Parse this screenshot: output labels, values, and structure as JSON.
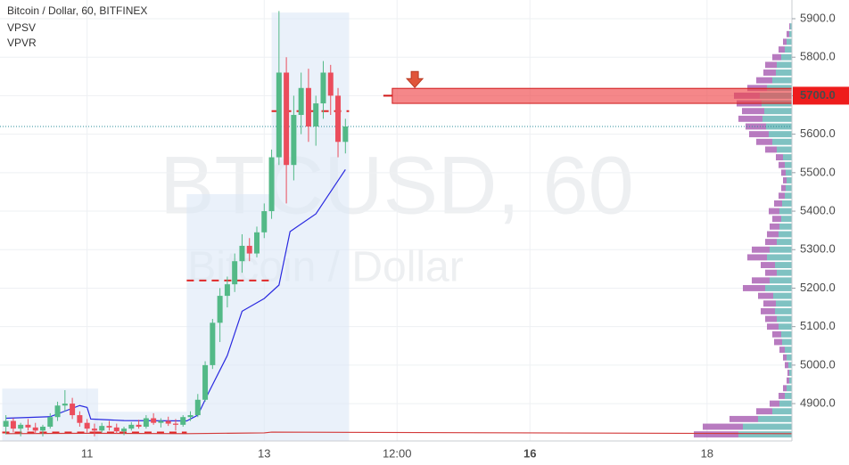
{
  "chart_data": {
    "type": "candlestick",
    "title": "Bitcoin / Dollar, 60, BITFINEX",
    "indicators": [
      "VPSV",
      "VPVR"
    ],
    "watermark": "BTCUSD, 60",
    "watermark_subtitle": "Bitcoin / Dollar",
    "xlim": [
      -23.6,
      191
    ],
    "ylim": [
      4803,
      5948.6
    ],
    "xticks": [
      {
        "value": 0,
        "label": "11"
      },
      {
        "value": 48,
        "label": "13"
      },
      {
        "value": 84,
        "label": "12:00"
      },
      {
        "value": 120,
        "label": "16"
      },
      {
        "value": 168,
        "label": "18"
      }
    ],
    "yticks": [
      {
        "value": 4900,
        "label": "4900.0"
      },
      {
        "value": 5000,
        "label": "5000.0"
      },
      {
        "value": 5100,
        "label": "5100.0"
      },
      {
        "value": 5200,
        "label": "5200.0"
      },
      {
        "value": 5300,
        "label": "5300.0"
      },
      {
        "value": 5400,
        "label": "5400.0"
      },
      {
        "value": 5500,
        "label": "5500.0"
      },
      {
        "value": 5600,
        "label": "5600.0"
      },
      {
        "value": 5700,
        "label": "5700.0"
      },
      {
        "value": 5800,
        "label": "5800.0"
      },
      {
        "value": 5900,
        "label": "5900.0"
      }
    ],
    "grid": true,
    "up_color": "#53b987",
    "down_color": "#eb4d5c",
    "candles": {
      "x": [
        -22,
        -20,
        -18,
        -16,
        -14,
        -12,
        -10,
        -8,
        -6,
        -4,
        -2,
        0,
        2,
        4,
        6,
        8,
        10,
        12,
        14,
        16,
        18,
        20,
        22,
        24,
        26,
        28,
        30,
        32,
        34,
        36,
        38,
        40,
        42,
        44,
        46,
        48,
        50,
        52,
        54,
        56,
        58,
        60,
        62,
        64,
        66,
        68,
        70
      ],
      "open": [
        4840,
        4855,
        4835,
        4845,
        4838,
        4830,
        4840,
        4865,
        4895,
        4900,
        4870,
        4850,
        4835,
        4830,
        4842,
        4838,
        4828,
        4835,
        4845,
        4840,
        4862,
        4850,
        4855,
        4848,
        4845,
        4865,
        4870,
        4910,
        5000,
        5110,
        5180,
        5210,
        5270,
        5310,
        5290,
        5345,
        5400,
        5540,
        5760,
        5520,
        5650,
        5720,
        5620,
        5680,
        5760,
        5700,
        5580
      ],
      "high": [
        4870,
        4862,
        4850,
        4860,
        4850,
        4845,
        4875,
        4905,
        4935,
        4915,
        4880,
        4860,
        4848,
        4850,
        4855,
        4848,
        4840,
        4852,
        4858,
        4870,
        4875,
        4862,
        4866,
        4860,
        4870,
        4880,
        4925,
        5010,
        5120,
        5200,
        5230,
        5290,
        5340,
        5330,
        5360,
        5420,
        5560,
        5920,
        5800,
        5700,
        5760,
        5770,
        5700,
        5790,
        5780,
        5720,
        5640
      ],
      "low": [
        4820,
        4825,
        4815,
        4830,
        4822,
        4815,
        4835,
        4855,
        4880,
        4860,
        4840,
        4825,
        4815,
        4825,
        4830,
        4822,
        4818,
        4830,
        4835,
        4835,
        4845,
        4838,
        4842,
        4830,
        4840,
        4855,
        4865,
        4905,
        4990,
        5060,
        5150,
        5190,
        5240,
        5270,
        5280,
        5330,
        5380,
        5520,
        5420,
        5480,
        5600,
        5580,
        5570,
        5640,
        5650,
        5540,
        5550
      ],
      "close": [
        4855,
        4835,
        4845,
        4838,
        4830,
        4840,
        4865,
        4895,
        4900,
        4870,
        4850,
        4835,
        4830,
        4842,
        4838,
        4828,
        4835,
        4845,
        4840,
        4862,
        4850,
        4855,
        4848,
        4845,
        4865,
        4870,
        4910,
        5000,
        5110,
        5180,
        5210,
        5270,
        5310,
        5290,
        5345,
        5400,
        5540,
        5760,
        5520,
        5650,
        5720,
        5620,
        5680,
        5760,
        5700,
        5580,
        5620
      ]
    },
    "lines": [
      {
        "color": "#2a2ae0",
        "x": [
          -22,
          -10,
          -2,
          0,
          1,
          10,
          27,
          30,
          33,
          38,
          42,
          48,
          52,
          55,
          62,
          70
        ],
        "values": [
          4862,
          4866,
          4895,
          4890,
          4860,
          4856,
          4855,
          4870,
          4930,
          5025,
          5140,
          5173,
          5208,
          5347,
          5393,
          5508
        ]
      },
      {
        "color": "#d33a3a",
        "x": [
          -22,
          0,
          27,
          48,
          50,
          191
        ],
        "values": [
          4822,
          4823,
          4822,
          4824,
          4826,
          4822
        ]
      }
    ],
    "ranges": [
      {
        "start": -23,
        "end": 3,
        "low": 4803,
        "high": 4939,
        "poc": 4825
      },
      {
        "start": 2,
        "end": 27,
        "low": 4803,
        "high": 4879,
        "poc": 4825
      },
      {
        "start": 27,
        "end": 50,
        "low": 4803,
        "high": 5444,
        "poc": 5220
      },
      {
        "start": 50,
        "end": 71,
        "low": 4803,
        "high": 5916,
        "poc": 5660
      }
    ],
    "zone": {
      "start": 82.7,
      "end": 191,
      "low": 5680,
      "high": 5719,
      "price": 5700,
      "label": "5700.0",
      "color": "#f0474a"
    },
    "arrow": {
      "x": 88.8,
      "price": 5735
    },
    "last_price": 5620,
    "volume_profile": {
      "up_color": "#5fb3b3",
      "down_color": "#a65ab0",
      "prices": [
        4820,
        4840,
        4860,
        4880,
        4900,
        4920,
        4940,
        4960,
        4980,
        5000,
        5020,
        5040,
        5060,
        5080,
        5100,
        5120,
        5140,
        5160,
        5180,
        5200,
        5220,
        5240,
        5260,
        5280,
        5300,
        5320,
        5340,
        5360,
        5380,
        5400,
        5420,
        5440,
        5460,
        5480,
        5500,
        5520,
        5540,
        5560,
        5580,
        5600,
        5620,
        5640,
        5660,
        5680,
        5700,
        5720,
        5740,
        5760,
        5780,
        5800,
        5820,
        5840,
        5860,
        5880
      ],
      "up": [
        60,
        55,
        38,
        22,
        14,
        8,
        6,
        3,
        3,
        4,
        6,
        8,
        11,
        12,
        15,
        17,
        19,
        18,
        21,
        30,
        25,
        17,
        19,
        28,
        25,
        17,
        15,
        14,
        12,
        14,
        11,
        8,
        7,
        6,
        7,
        8,
        10,
        17,
        22,
        26,
        29,
        33,
        31,
        34,
        36,
        28,
        22,
        18,
        17,
        12,
        8,
        6,
        3,
        2
      ],
      "down": [
        50,
        45,
        32,
        18,
        11,
        7,
        4,
        3,
        2,
        4,
        4,
        6,
        9,
        10,
        13,
        13,
        16,
        14,
        17,
        25,
        20,
        13,
        16,
        22,
        20,
        13,
        13,
        11,
        10,
        12,
        9,
        7,
        5,
        4,
        5,
        7,
        8,
        13,
        18,
        22,
        23,
        27,
        25,
        28,
        29,
        22,
        18,
        14,
        13,
        10,
        7,
        4,
        3,
        1
      ]
    }
  }
}
